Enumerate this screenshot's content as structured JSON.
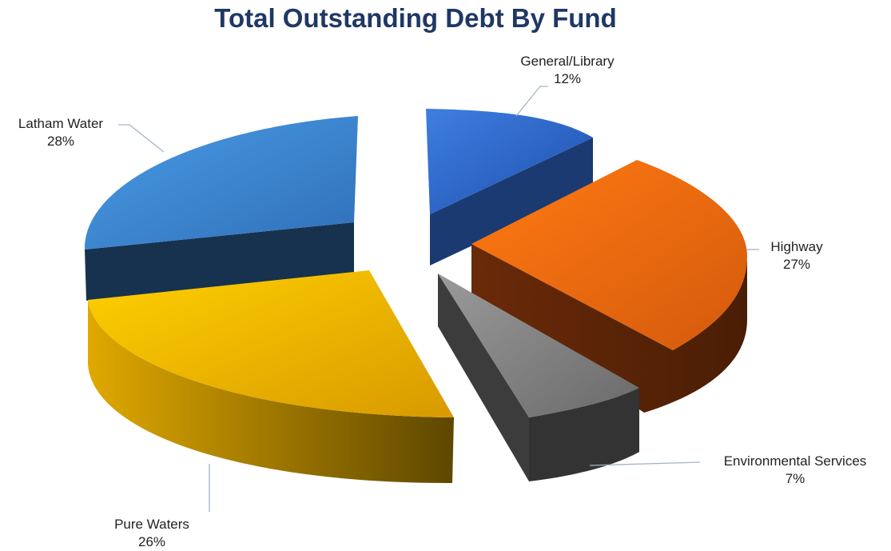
{
  "chart_data": {
    "type": "pie",
    "title": "Total Outstanding Debt By Fund",
    "style": "3d-exploded",
    "slices": [
      {
        "name": "General/Library",
        "value": 12,
        "label": "12%",
        "color": "#2E63C8"
      },
      {
        "name": "Highway",
        "value": 27,
        "label": "27%",
        "color": "#EE6A12"
      },
      {
        "name": "Environmental Services",
        "value": 7,
        "label": "7%",
        "color": "#7A7A7A"
      },
      {
        "name": "Pure Waters",
        "value": 26,
        "label": "26%",
        "color": "#F2BC00"
      },
      {
        "name": "Latham Water",
        "value": 28,
        "label": "28%",
        "color": "#3A8BD8"
      }
    ]
  }
}
